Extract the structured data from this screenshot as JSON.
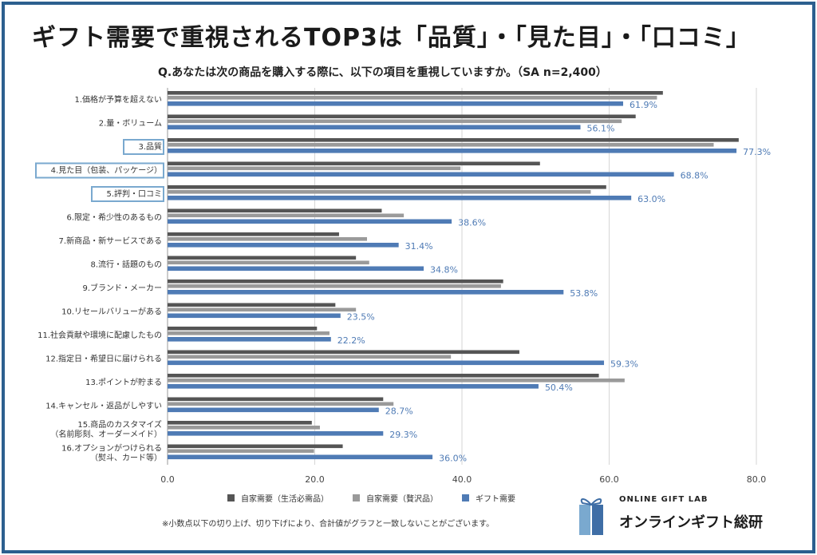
{
  "title": "ギフト需要で重視されるTOP3は「品質」・「見た目」・「口コミ」",
  "subtitle": "Q.あなたは次の商品を購入する際に、以下の項目を重視していますか。（SA n=2,400）",
  "footnote": "※小数点以下の切り上げ、切り下げにより、合計値がグラフと一致しないことがございます。",
  "logo": {
    "line1": "ONLINE GIFT LAB",
    "line2": "オンラインギフト総研"
  },
  "colors": {
    "self_daily": "#555555",
    "self_luxury": "#9a9a9a",
    "gift": "#4f7bb5",
    "frame": "#2c5f8f",
    "highlight": "#7aa9cf"
  },
  "chart_data": {
    "type": "bar",
    "orientation": "horizontal",
    "xlim": [
      0,
      80
    ],
    "xticks": [
      "0.0",
      "20.0",
      "40.0",
      "60.0",
      "80.0"
    ],
    "categories": [
      [
        "1.価格が予算を超えない"
      ],
      [
        "2.量・ボリューム"
      ],
      [
        "3.品質"
      ],
      [
        "4.見た目（包装、パッケージ）"
      ],
      [
        "5.評判・口コミ"
      ],
      [
        "6.限定・希少性のあるもの"
      ],
      [
        "7.新商品・新サービスである"
      ],
      [
        "8.流行・話題のもの"
      ],
      [
        "9.ブランド・メーカー"
      ],
      [
        "10.リセールバリューがある"
      ],
      [
        "11.社会貢献や環境に配慮したもの"
      ],
      [
        "12.指定日・希望日に届けられる"
      ],
      [
        "13.ポイントが貯まる"
      ],
      [
        "14.キャンセル・返品がしやすい"
      ],
      [
        "15.商品のカスタマイズ",
        "（名前彫刻、オーダーメイド）"
      ],
      [
        "16.オプションがつけられる",
        "（熨斗、カード等）"
      ]
    ],
    "highlighted": [
      2,
      3,
      4
    ],
    "series": [
      {
        "name": "自家需要（生活必需品）",
        "values": [
          67.3,
          63.6,
          77.6,
          50.6,
          59.6,
          29.1,
          23.3,
          25.6,
          45.6,
          22.8,
          20.3,
          47.8,
          58.6,
          29.3,
          19.6,
          23.8
        ]
      },
      {
        "name": "自家需要（贅沢品）",
        "values": [
          66.5,
          61.7,
          74.2,
          39.8,
          57.5,
          32.1,
          27.1,
          27.4,
          45.3,
          25.6,
          22.0,
          38.5,
          62.1,
          30.7,
          20.7,
          19.9
        ]
      },
      {
        "name": "ギフト需要",
        "values": [
          61.9,
          56.1,
          77.3,
          68.8,
          63.0,
          38.6,
          31.4,
          34.8,
          53.8,
          23.5,
          22.2,
          59.3,
          50.4,
          28.7,
          29.3,
          36.0
        ]
      }
    ],
    "gift_labels": [
      "61.9%",
      "56.1%",
      "77.3%",
      "68.8%",
      "63.0%",
      "38.6%",
      "31.4%",
      "34.8%",
      "53.8%",
      "23.5%",
      "22.2%",
      "59.3%",
      "50.4%",
      "28.7%",
      "29.3%",
      "36.0%"
    ],
    "legend_placement": "bottom",
    "grid": true
  }
}
